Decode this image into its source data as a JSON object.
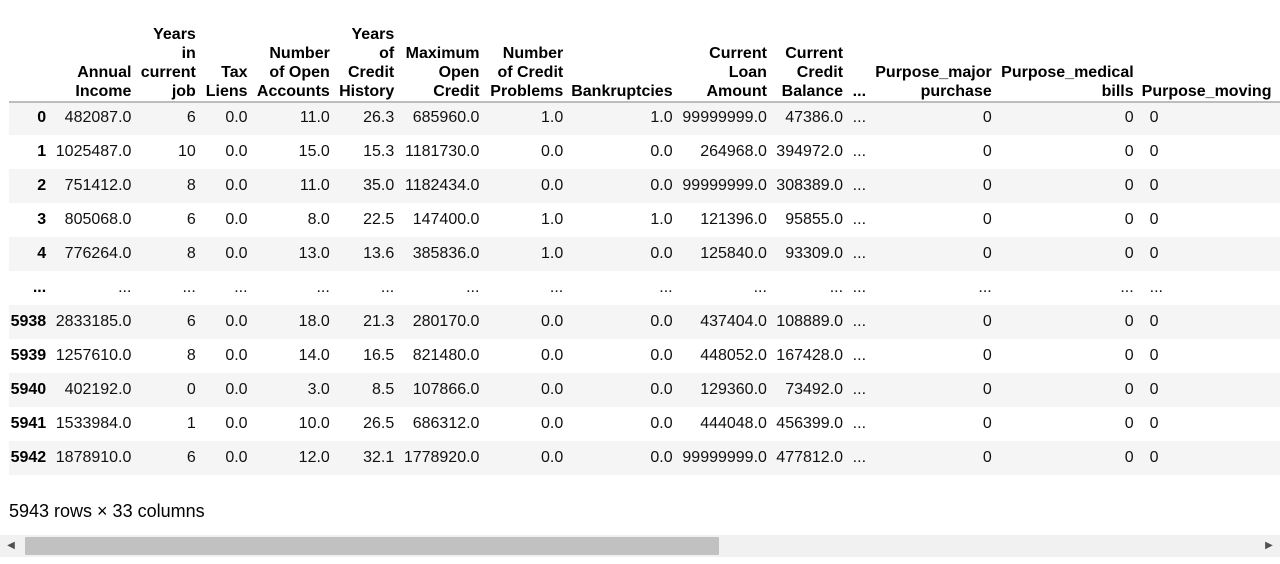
{
  "columns": [
    {
      "key": "index",
      "label": ""
    },
    {
      "key": "annual_income",
      "label": "Annual Income"
    },
    {
      "key": "years_in_job",
      "label": "Years in current job"
    },
    {
      "key": "tax_liens",
      "label": "Tax Liens"
    },
    {
      "key": "open_accounts",
      "label": "Number of Open Accounts"
    },
    {
      "key": "credit_history",
      "label": "Years of Credit History"
    },
    {
      "key": "max_open_credit",
      "label": "Maximum Open Credit"
    },
    {
      "key": "credit_problems",
      "label": "Number of Credit Problems"
    },
    {
      "key": "bankruptcies",
      "label": "Bankruptcies"
    },
    {
      "key": "loan_amount",
      "label": "Current Loan Amount"
    },
    {
      "key": "credit_balance",
      "label": "Current Credit Balance"
    },
    {
      "key": "ellipsis",
      "label": "..."
    },
    {
      "key": "purpose_major",
      "label": "Purpose_major purchase"
    },
    {
      "key": "purpose_medical",
      "label": "Purpose_medical bills"
    },
    {
      "key": "purpose_next",
      "label": "Purpose_moving"
    }
  ],
  "rows": [
    [
      "0",
      "482087.0",
      "6",
      "0.0",
      "11.0",
      "26.3",
      "685960.0",
      "1.0",
      "1.0",
      "99999999.0",
      "47386.0",
      "...",
      "0",
      "0",
      "0"
    ],
    [
      "1",
      "1025487.0",
      "10",
      "0.0",
      "15.0",
      "15.3",
      "1181730.0",
      "0.0",
      "0.0",
      "264968.0",
      "394972.0",
      "...",
      "0",
      "0",
      "0"
    ],
    [
      "2",
      "751412.0",
      "8",
      "0.0",
      "11.0",
      "35.0",
      "1182434.0",
      "0.0",
      "0.0",
      "99999999.0",
      "308389.0",
      "...",
      "0",
      "0",
      "0"
    ],
    [
      "3",
      "805068.0",
      "6",
      "0.0",
      "8.0",
      "22.5",
      "147400.0",
      "1.0",
      "1.0",
      "121396.0",
      "95855.0",
      "...",
      "0",
      "0",
      "0"
    ],
    [
      "4",
      "776264.0",
      "8",
      "0.0",
      "13.0",
      "13.6",
      "385836.0",
      "1.0",
      "0.0",
      "125840.0",
      "93309.0",
      "...",
      "0",
      "0",
      "0"
    ],
    [
      "...",
      "...",
      "...",
      "...",
      "...",
      "...",
      "...",
      "...",
      "...",
      "...",
      "...",
      "...",
      "...",
      "...",
      "..."
    ],
    [
      "5938",
      "2833185.0",
      "6",
      "0.0",
      "18.0",
      "21.3",
      "280170.0",
      "0.0",
      "0.0",
      "437404.0",
      "108889.0",
      "...",
      "0",
      "0",
      "0"
    ],
    [
      "5939",
      "1257610.0",
      "8",
      "0.0",
      "14.0",
      "16.5",
      "821480.0",
      "0.0",
      "0.0",
      "448052.0",
      "167428.0",
      "...",
      "0",
      "0",
      "0"
    ],
    [
      "5940",
      "402192.0",
      "0",
      "0.0",
      "3.0",
      "8.5",
      "107866.0",
      "0.0",
      "0.0",
      "129360.0",
      "73492.0",
      "...",
      "0",
      "0",
      "0"
    ],
    [
      "5941",
      "1533984.0",
      "1",
      "0.0",
      "10.0",
      "26.5",
      "686312.0",
      "0.0",
      "0.0",
      "444048.0",
      "456399.0",
      "...",
      "0",
      "0",
      "0"
    ],
    [
      "5942",
      "1878910.0",
      "6",
      "0.0",
      "12.0",
      "32.1",
      "1778920.0",
      "0.0",
      "0.0",
      "99999999.0",
      "477812.0",
      "...",
      "0",
      "0",
      "0"
    ]
  ],
  "summary": "5943 rows × 33 columns",
  "scrollbar": {
    "left_icon": "scroll-left-arrow-icon",
    "right_icon": "scroll-right-arrow-icon",
    "left_glyph": "◀",
    "right_glyph": "▶",
    "position": 0.0
  }
}
